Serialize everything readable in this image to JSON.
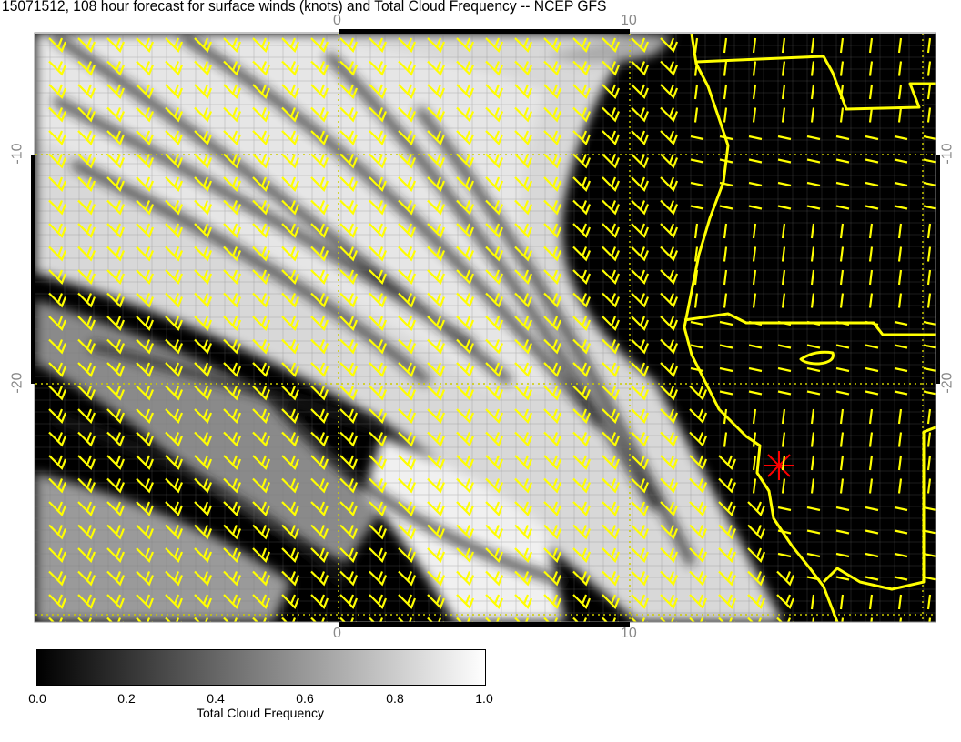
{
  "title": "15071512, 108 hour forecast for surface winds (knots) and Total Cloud Frequency -- NCEP GFS",
  "axes": {
    "top_ticks": [
      "0",
      "10"
    ],
    "bottom_ticks": [
      "0",
      "10"
    ],
    "left_ticks": [
      "-10",
      "-20"
    ],
    "right_ticks": [
      "-10",
      "-20"
    ]
  },
  "colors": {
    "wind_barbs": "#ffff00",
    "coastline": "#ffff00",
    "marker": "#ff0000",
    "cloud_low": "#000000",
    "cloud_high": "#ffffff"
  },
  "marker_icon": "red-asterisk",
  "colorbar": {
    "label": "Total Cloud Frequency",
    "min": 0.0,
    "max": 1.0,
    "ticks": [
      "0.0",
      "0.2",
      "0.4",
      "0.6",
      "0.8",
      "1.0"
    ]
  }
}
